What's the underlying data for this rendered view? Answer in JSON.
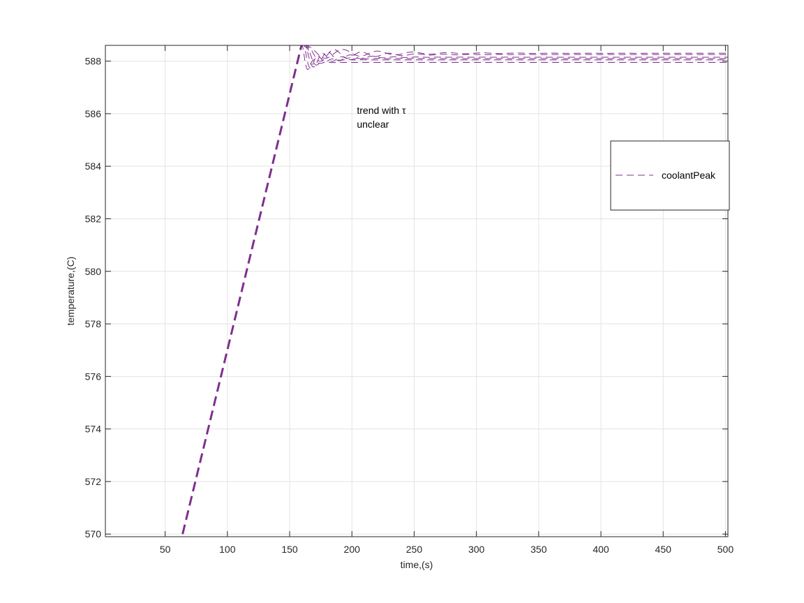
{
  "chart_data": {
    "type": "line",
    "title": "",
    "xlabel": "time,(s)",
    "ylabel": "temperature,(C)",
    "xlim": [
      2,
      502
    ],
    "ylim": [
      569.9,
      588.6
    ],
    "xticks": [
      50,
      100,
      150,
      200,
      250,
      300,
      350,
      400,
      450,
      500
    ],
    "yticks": [
      570,
      572,
      574,
      576,
      578,
      580,
      582,
      584,
      586,
      588
    ],
    "grid": true,
    "legend": {
      "location": "top-right",
      "entries": [
        "coolantPeak"
      ]
    },
    "annotation": [
      "trend with τ",
      "unclear"
    ],
    "annotation_position": {
      "x": 204,
      "y": 586
    },
    "line_color": "#7E2F8E",
    "line_style": "dashed",
    "ramp": {
      "x": [
        64,
        160
      ],
      "y": [
        570,
        588.7
      ]
    },
    "series": [
      {
        "name": "coolantPeak",
        "amp": 0.7,
        "tau": 5,
        "period": 10,
        "final": 587.95,
        "t0": 160,
        "peak": 588.7
      },
      {
        "amp": 0.65,
        "tau": 8,
        "period": 12,
        "final": 588.05,
        "t0": 161,
        "peak": 588.6
      },
      {
        "amp": 0.55,
        "tau": 14,
        "period": 15,
        "final": 588.1,
        "t0": 162,
        "peak": 588.55
      },
      {
        "amp": 0.45,
        "tau": 22,
        "period": 18,
        "final": 588.15,
        "t0": 163,
        "peak": 588.5
      },
      {
        "amp": 0.35,
        "tau": 35,
        "period": 22,
        "final": 588.25,
        "t0": 164,
        "peak": 588.45
      },
      {
        "amp": 0.25,
        "tau": 50,
        "period": 28,
        "final": 588.3,
        "t0": 165,
        "peak": 588.4
      }
    ]
  }
}
